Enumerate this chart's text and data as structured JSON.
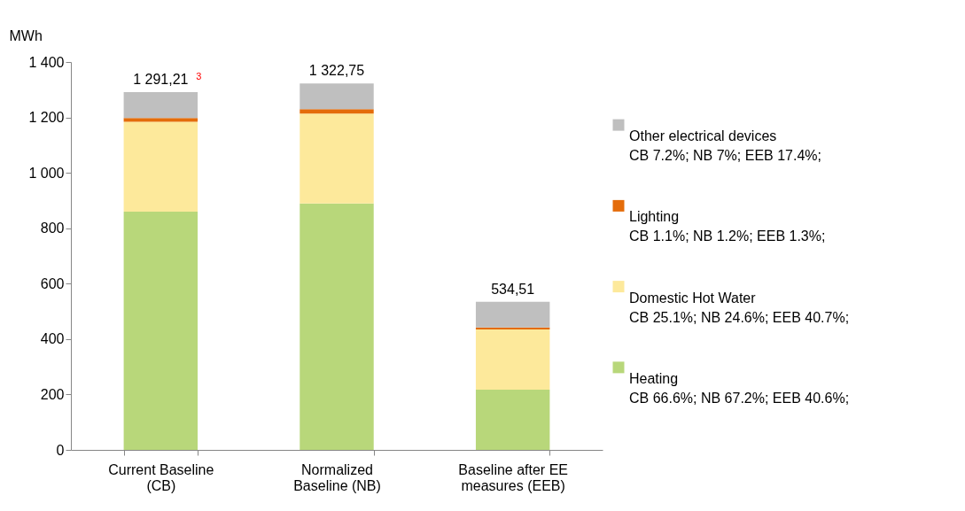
{
  "chart_data": {
    "type": "bar",
    "stacked": true,
    "ylabel": "MWh",
    "categories": [
      "Current Baseline (CB)",
      "Normalized Baseline (NB)",
      "Baseline after EE measures (EEB)"
    ],
    "series": [
      {
        "name": "Heating\nCB 66.6%;  NB 67.2%;  EEB 40.6%;",
        "color": "#b8d77a",
        "values": [
          860,
          889,
          217
        ]
      },
      {
        "name": "Domestic Hot Water\nCB 25.1%;  NB 24.6%;  EEB 40.7%;",
        "color": "#fde99b",
        "values": [
          324,
          325,
          218
        ]
      },
      {
        "name": "Lighting\nCB 1.1%;  NB 1.2%;  EEB 1.3%;",
        "color": "#e46c0a",
        "values": [
          14,
          16,
          7
        ]
      },
      {
        "name": "Other electrical devices\nCB 7.2%;  NB 7%;  EEB 17.4%;",
        "color": "#bfbfbf",
        "values": [
          93.21,
          92.75,
          92.51
        ]
      }
    ],
    "totals": [
      "1 291,21",
      "1 322,75",
      "534,51"
    ],
    "annotations": [
      "3"
    ],
    "ylim": [
      0,
      1400
    ],
    "yticks": [
      0,
      {
        "value": 200,
        "label": "200"
      },
      400,
      600,
      800,
      {
        "value": 1000,
        "label": "1 000"
      },
      {
        "value": 1200,
        "label": "1 200"
      },
      {
        "value": 1400,
        "label": "1 400"
      }
    ],
    "grid": false,
    "legend": "right"
  }
}
